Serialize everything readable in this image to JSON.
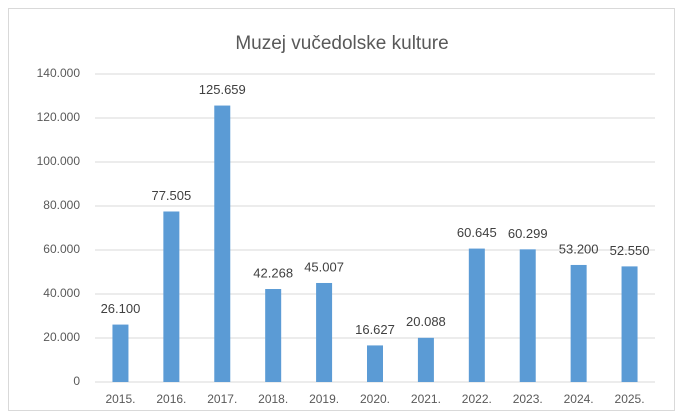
{
  "chart_data": {
    "type": "bar",
    "title": "Muzej vučedolske kulture",
    "categories": [
      "2015.",
      "2016.",
      "2017.",
      "2018.",
      "2019.",
      "2020.",
      "2021.",
      "2022.",
      "2023.",
      "2024.",
      "2025."
    ],
    "values": [
      26100,
      77505,
      125659,
      42268,
      45007,
      16627,
      20088,
      60645,
      60299,
      53200,
      52550
    ],
    "value_labels": [
      "26.100",
      "77.505",
      "125.659",
      "42.268",
      "45.007",
      "16.627",
      "20.088",
      "60.645",
      "60.299",
      "53.200",
      "52.550"
    ],
    "color": "#5b9bd5",
    "ylim": [
      0,
      140000
    ],
    "yticks": [
      0,
      {
        "value": 20000,
        "label": "20.000"
      },
      {
        "value": 40000,
        "label": "40.000"
      },
      {
        "value": 60000,
        "label": "60.000"
      },
      {
        "value": 80000,
        "label": "80.000"
      },
      {
        "value": 100000,
        "label": "100.000"
      },
      {
        "value": 120000,
        "label": "120.000"
      },
      {
        "value": 140000,
        "label": "140.000"
      }
    ],
    "grid": true
  }
}
